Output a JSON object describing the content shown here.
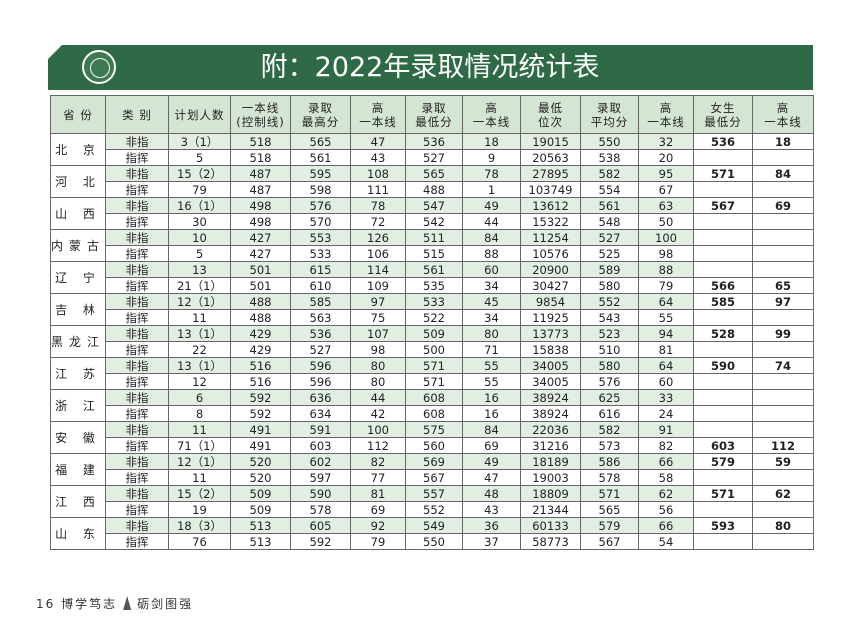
{
  "header": {
    "title": "附：2022年录取情况统计表"
  },
  "table": {
    "columns": [
      "省 份",
      "类 别",
      "计划人数",
      "一本线\n(控制线)",
      "录取\n最高分",
      "高\n一本线",
      "录取\n最低分",
      "高\n一本线",
      "最低\n位次",
      "录取\n平均分",
      "高\n一本线",
      "女生\n最低分",
      "高\n一本线"
    ],
    "provinces": [
      {
        "name": "北 京",
        "rows": [
          [
            "非指",
            "3（1）",
            "518",
            "565",
            "47",
            "536",
            "18",
            "19015",
            "550",
            "32",
            "536",
            "18"
          ],
          [
            "指挥",
            "5",
            "518",
            "561",
            "43",
            "527",
            "9",
            "20563",
            "538",
            "20",
            null,
            null
          ]
        ]
      },
      {
        "name": "河 北",
        "rows": [
          [
            "非指",
            "15（2）",
            "487",
            "595",
            "108",
            "565",
            "78",
            "27895",
            "582",
            "95",
            "571",
            "84"
          ],
          [
            "指挥",
            "79",
            "487",
            "598",
            "111",
            "488",
            "1",
            "103749",
            "554",
            "67",
            null,
            null
          ]
        ]
      },
      {
        "name": "山 西",
        "rows": [
          [
            "非指",
            "16（1）",
            "498",
            "576",
            "78",
            "547",
            "49",
            "13612",
            "561",
            "63",
            "567",
            "69"
          ],
          [
            "指挥",
            "30",
            "498",
            "570",
            "72",
            "542",
            "44",
            "15322",
            "548",
            "50",
            null,
            null
          ]
        ]
      },
      {
        "name": "内蒙古",
        "rows": [
          [
            "非指",
            "10",
            "427",
            "553",
            "126",
            "511",
            "84",
            "11254",
            "527",
            "100",
            null,
            null
          ],
          [
            "指挥",
            "5",
            "427",
            "533",
            "106",
            "515",
            "88",
            "10576",
            "525",
            "98",
            null,
            null
          ]
        ]
      },
      {
        "name": "辽 宁",
        "rows": [
          [
            "非指",
            "13",
            "501",
            "615",
            "114",
            "561",
            "60",
            "20900",
            "589",
            "88",
            null,
            null
          ],
          [
            "指挥",
            "21（1）",
            "501",
            "610",
            "109",
            "535",
            "34",
            "30427",
            "580",
            "79",
            "566",
            "65"
          ]
        ]
      },
      {
        "name": "吉 林",
        "rows": [
          [
            "非指",
            "12（1）",
            "488",
            "585",
            "97",
            "533",
            "45",
            "9854",
            "552",
            "64",
            "585",
            "97"
          ],
          [
            "指挥",
            "11",
            "488",
            "563",
            "75",
            "522",
            "34",
            "11925",
            "543",
            "55",
            null,
            null
          ]
        ]
      },
      {
        "name": "黑龙江",
        "rows": [
          [
            "非指",
            "13（1）",
            "429",
            "536",
            "107",
            "509",
            "80",
            "13773",
            "523",
            "94",
            "528",
            "99"
          ],
          [
            "指挥",
            "22",
            "429",
            "527",
            "98",
            "500",
            "71",
            "15838",
            "510",
            "81",
            null,
            null
          ]
        ]
      },
      {
        "name": "江 苏",
        "rows": [
          [
            "非指",
            "13（1）",
            "516",
            "596",
            "80",
            "571",
            "55",
            "34005",
            "580",
            "64",
            "590",
            "74"
          ],
          [
            "指挥",
            "12",
            "516",
            "596",
            "80",
            "571",
            "55",
            "34005",
            "576",
            "60",
            null,
            null
          ]
        ]
      },
      {
        "name": "浙 江",
        "rows": [
          [
            "非指",
            "6",
            "592",
            "636",
            "44",
            "608",
            "16",
            "38924",
            "625",
            "33",
            null,
            null
          ],
          [
            "指挥",
            "8",
            "592",
            "634",
            "42",
            "608",
            "16",
            "38924",
            "616",
            "24",
            null,
            null
          ]
        ]
      },
      {
        "name": "安 徽",
        "rows": [
          [
            "非指",
            "11",
            "491",
            "591",
            "100",
            "575",
            "84",
            "22036",
            "582",
            "91",
            null,
            null
          ],
          [
            "指挥",
            "71（1）",
            "491",
            "603",
            "112",
            "560",
            "69",
            "31216",
            "573",
            "82",
            "603",
            "112"
          ]
        ]
      },
      {
        "name": "福 建",
        "rows": [
          [
            "非指",
            "12（1）",
            "520",
            "602",
            "82",
            "569",
            "49",
            "18189",
            "586",
            "66",
            "579",
            "59"
          ],
          [
            "指挥",
            "11",
            "520",
            "597",
            "77",
            "567",
            "47",
            "19003",
            "578",
            "58",
            null,
            null
          ]
        ]
      },
      {
        "name": "江 西",
        "rows": [
          [
            "非指",
            "15（2）",
            "509",
            "590",
            "81",
            "557",
            "48",
            "18809",
            "571",
            "62",
            "571",
            "62"
          ],
          [
            "指挥",
            "19",
            "509",
            "578",
            "69",
            "552",
            "43",
            "21344",
            "565",
            "56",
            null,
            null
          ]
        ]
      },
      {
        "name": "山 东",
        "rows": [
          [
            "非指",
            "18（3）",
            "513",
            "605",
            "92",
            "549",
            "36",
            "60133",
            "579",
            "66",
            "593",
            "80"
          ],
          [
            "指挥",
            "76",
            "513",
            "592",
            "79",
            "550",
            "37",
            "58773",
            "567",
            "54",
            null,
            null
          ]
        ]
      }
    ]
  },
  "footer": {
    "page": "16",
    "left": "博学笃志",
    "right": "砺剑图强"
  }
}
